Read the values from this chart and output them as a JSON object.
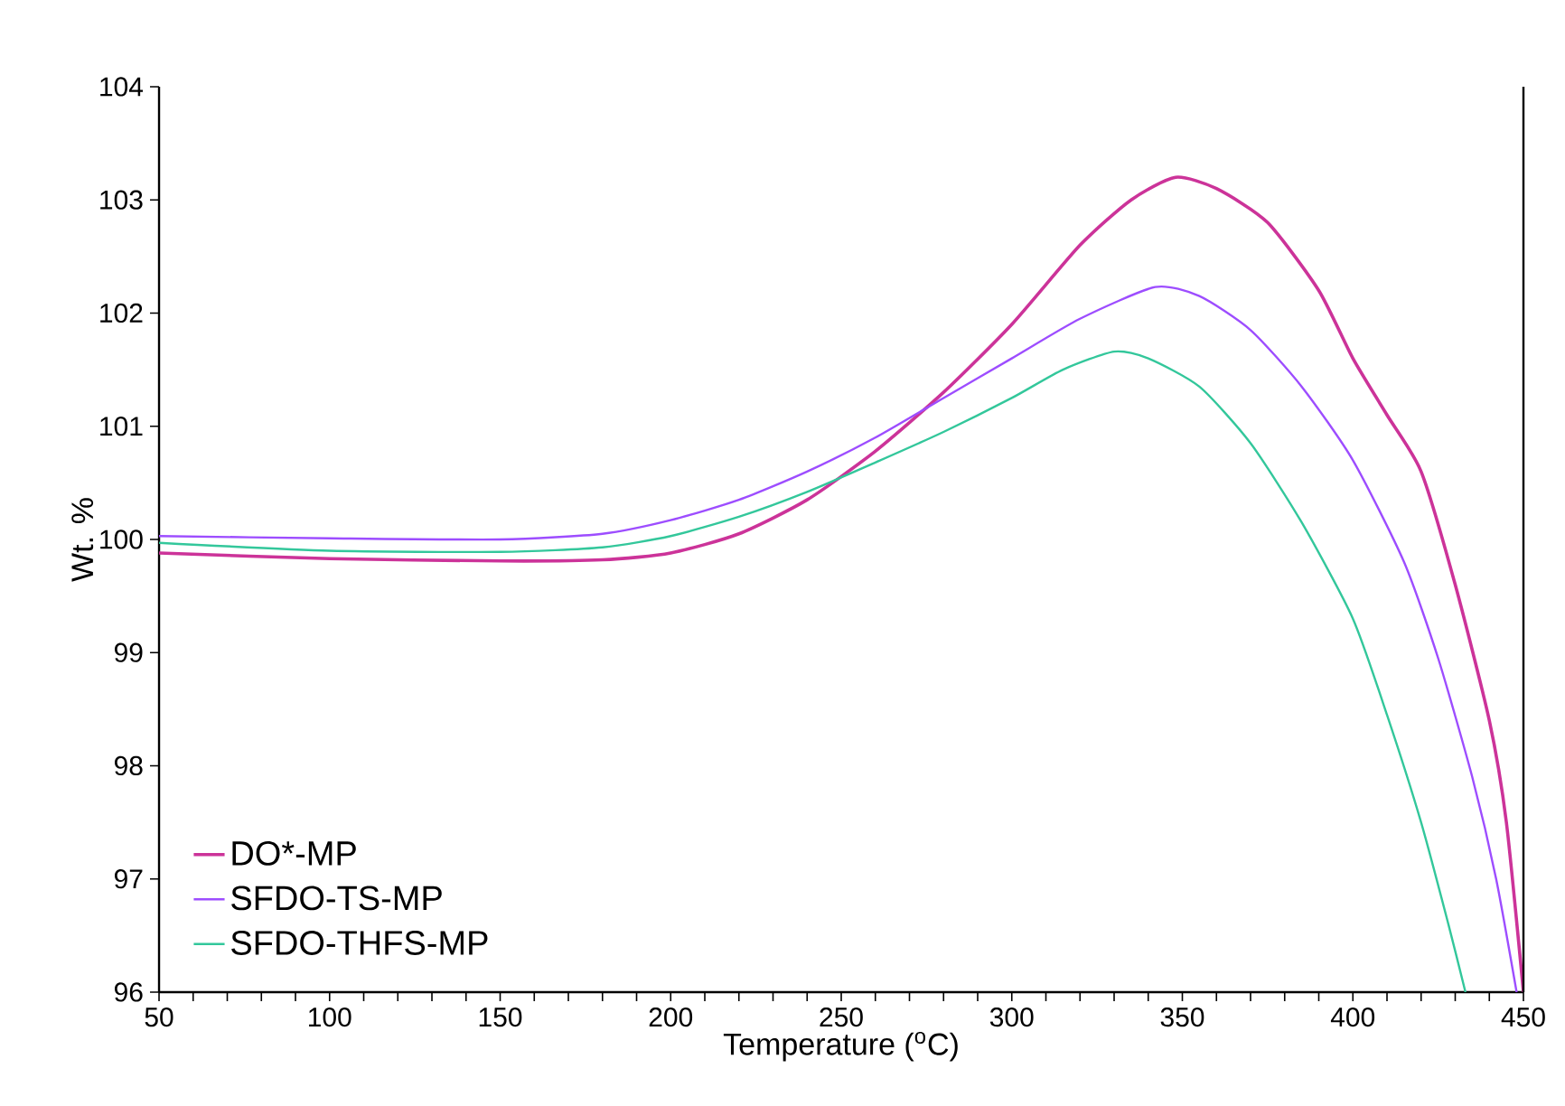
{
  "chart_data": {
    "type": "line",
    "xlabel": "Temperature ($^{o}$C)",
    "ylabel": "Wt. %",
    "xlim": [
      50,
      450
    ],
    "ylim": [
      96,
      104
    ],
    "xticks": [
      50,
      100,
      150,
      200,
      250,
      300,
      350,
      400,
      450
    ],
    "yticks": [
      96,
      97,
      98,
      99,
      100,
      101,
      102,
      103,
      104
    ],
    "grid": false,
    "legend": "bottom left",
    "marker": "none",
    "line_style": "solid",
    "series": [
      {
        "name": "DO*-MP",
        "color": "#cc3399",
        "x": [
          50,
          100,
          150,
          180,
          200,
          220,
          240,
          260,
          280,
          300,
          320,
          335,
          348,
          360,
          375,
          390,
          400,
          410,
          420,
          430,
          440,
          445,
          450
        ],
        "values": [
          99.88,
          99.83,
          99.81,
          99.82,
          99.88,
          100.05,
          100.35,
          100.78,
          101.3,
          101.9,
          102.6,
          103.0,
          103.2,
          103.1,
          102.8,
          102.2,
          101.6,
          101.1,
          100.6,
          99.6,
          98.4,
          97.5,
          96.0
        ]
      },
      {
        "name": "SFDO-TS-MP",
        "color": "#9d4dff",
        "x": [
          50,
          100,
          150,
          180,
          200,
          220,
          240,
          260,
          280,
          300,
          320,
          342,
          355,
          370,
          385,
          400,
          415,
          425,
          435,
          442,
          448
        ],
        "values": [
          100.03,
          100.01,
          100.0,
          100.05,
          100.17,
          100.35,
          100.6,
          100.9,
          101.25,
          101.6,
          101.95,
          102.23,
          102.15,
          101.85,
          101.35,
          100.7,
          99.8,
          98.95,
          97.9,
          97.0,
          96.0
        ]
      },
      {
        "name": "SFDO-THFS-MP",
        "color": "#33c79b",
        "x": [
          50,
          100,
          150,
          180,
          200,
          220,
          240,
          260,
          280,
          300,
          315,
          330,
          340,
          355,
          370,
          385,
          400,
          410,
          420,
          428,
          433
        ],
        "values": [
          99.97,
          99.9,
          99.89,
          99.93,
          100.03,
          100.2,
          100.42,
          100.68,
          100.95,
          101.25,
          101.5,
          101.66,
          101.6,
          101.35,
          100.85,
          100.15,
          99.3,
          98.45,
          97.5,
          96.6,
          96.0
        ]
      }
    ]
  }
}
